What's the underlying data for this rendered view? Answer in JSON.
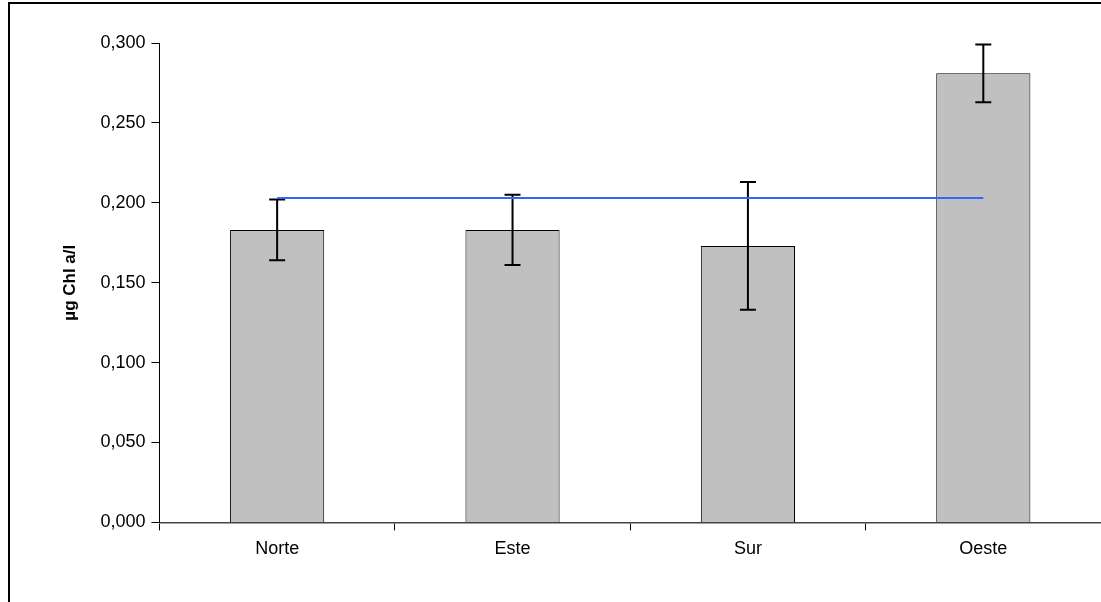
{
  "chart_data": {
    "type": "bar",
    "ylabel": "µg Chl a/l",
    "categories": [
      "Norte",
      "Este",
      "Sur",
      "Oeste"
    ],
    "values": [
      0.183,
      0.183,
      0.173,
      0.281
    ],
    "errors": [
      0.019,
      0.022,
      0.04,
      0.018
    ],
    "color": "#c0c0c0",
    "ylim": [
      0,
      0.3
    ],
    "yticks": [
      {
        "value": 0,
        "label": "0,000"
      },
      {
        "value": 0.05,
        "label": "0,050"
      },
      {
        "value": 0.1,
        "label": "0,100"
      },
      {
        "value": 0.15,
        "label": "0,150"
      },
      {
        "value": 0.2,
        "label": "0,200"
      },
      {
        "value": 0.25,
        "label": "0,250"
      },
      {
        "value": 0.3,
        "label": "0,300"
      }
    ],
    "ref_lines": [
      {
        "axis": "y",
        "value": 0.203,
        "color": "#3366ff"
      }
    ],
    "grid": false,
    "legend": false
  }
}
